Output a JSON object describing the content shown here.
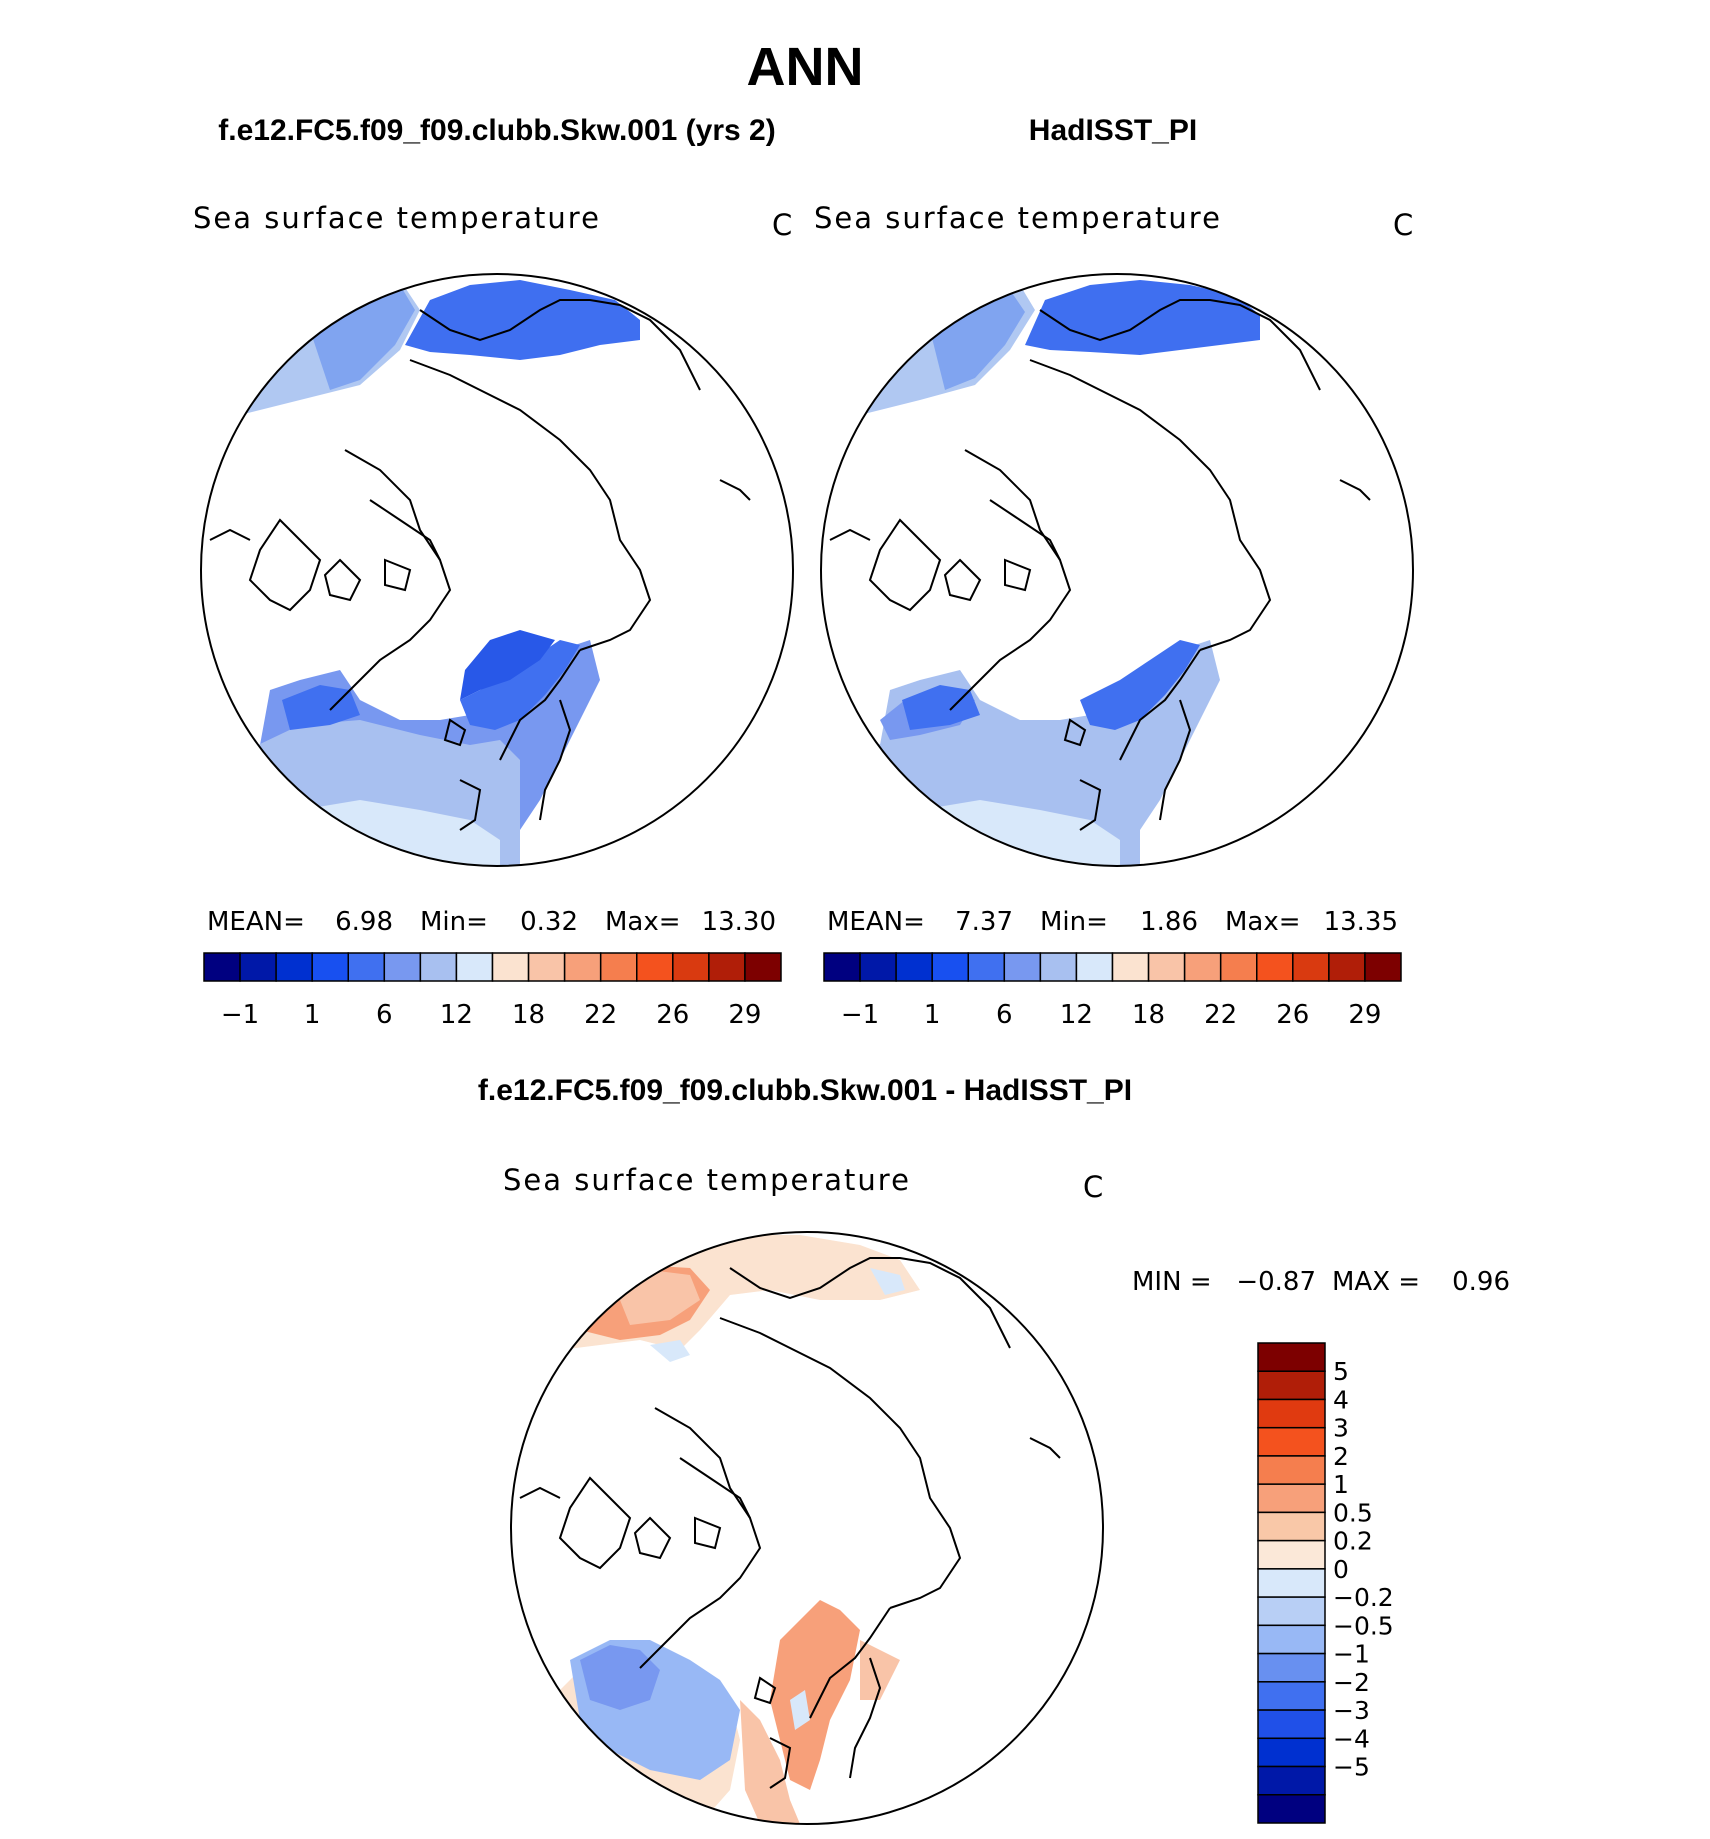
{
  "title": "ANN",
  "panels": [
    {
      "case_title": "f.e12.FC5.f09_f09.clubb.Skw.001 (yrs 2)",
      "variable": "Sea surface temperature",
      "units": "C",
      "stats": {
        "mean_label": "MEAN=",
        "mean": "6.98",
        "min_label": "Min=",
        "min": "0.32",
        "max_label": "Max=",
        "max": "13.30"
      }
    },
    {
      "case_title": "HadISST_PI",
      "variable": "Sea surface temperature",
      "units": "C",
      "stats": {
        "mean_label": "MEAN=",
        "mean": "7.37",
        "min_label": "Min=",
        "min": "1.86",
        "max_label": "Max=",
        "max": "13.35"
      }
    }
  ],
  "abs_colorbar": {
    "colors": [
      "#000080",
      "#0018a8",
      "#0030d0",
      "#1850f0",
      "#4070f0",
      "#7898f0",
      "#a8c0f0",
      "#d8e8fa",
      "#fbe3d0",
      "#f9c4a8",
      "#f7a07a",
      "#f57e4e",
      "#f4521e",
      "#d93a10",
      "#b01e08",
      "#7d0000"
    ],
    "tick_labels": [
      "−1",
      "1",
      "6",
      "12",
      "18",
      "22",
      "26",
      "29"
    ]
  },
  "diff_panel": {
    "title": "f.e12.FC5.f09_f09.clubb.Skw.001 - HadISST_PI",
    "variable": "Sea surface temperature",
    "units": "C",
    "stats": {
      "min_label": "MIN =",
      "min": "−0.87",
      "max_label": "MAX =",
      "max": "0.96"
    }
  },
  "diff_colorbar": {
    "colors": [
      "#7d0000",
      "#b01e08",
      "#e03a10",
      "#f4521e",
      "#f57e4e",
      "#f7a07a",
      "#f9c8a8",
      "#fbe8d8",
      "#d8e8fa",
      "#b8cff5",
      "#98b8f5",
      "#6890f0",
      "#4070f0",
      "#2050e8",
      "#0030d0",
      "#0018a8",
      "#000080"
    ],
    "tick_labels": [
      "5",
      "4",
      "3",
      "2",
      "1",
      "0.5",
      "0.2",
      "0",
      "−0.2",
      "−0.5",
      "−1",
      "−2",
      "−3",
      "−4",
      "−5"
    ]
  }
}
